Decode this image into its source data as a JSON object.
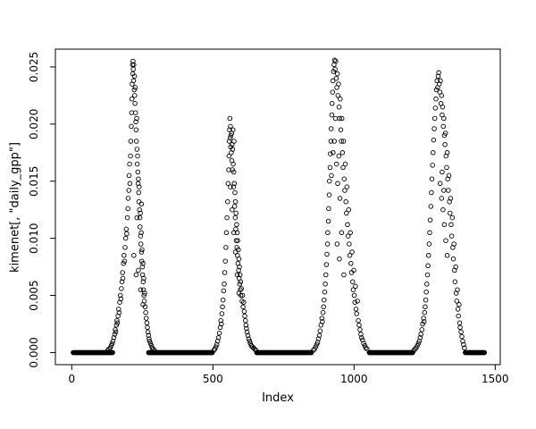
{
  "figure": {
    "background": "#ffffff",
    "foreground": "#000000"
  },
  "chart_data": {
    "type": "scatter",
    "title": "",
    "xlabel": "Index",
    "ylabel": "kimenet[, \"daily_gpp\"]",
    "x_ticks": [
      0,
      500,
      1000,
      1500
    ],
    "x_tick_labels": [
      "0",
      "500",
      "1000",
      "1500"
    ],
    "y_ticks": [
      0,
      0.005,
      0.01,
      0.015,
      0.02,
      0.025
    ],
    "y_tick_labels": [
      "0.000",
      "0.005",
      "0.010",
      "0.015",
      "0.020",
      "0.025"
    ],
    "xlim": [
      -58,
      1518
    ],
    "ylim": [
      -0.00106,
      0.02656
    ],
    "grid": false,
    "legend": null,
    "marker": {
      "shape": "open-circle",
      "radius": 2.3,
      "color": "#000000"
    },
    "baseline_runs": [
      {
        "x_start": 5,
        "x_end": 146,
        "step": 2,
        "y": 0
      },
      {
        "x_start": 272,
        "x_end": 498,
        "step": 2,
        "y": 0
      },
      {
        "x_start": 655,
        "x_end": 850,
        "step": 2,
        "y": 0
      },
      {
        "x_start": 1054,
        "x_end": 1208,
        "step": 2,
        "y": 0
      },
      {
        "x_start": 1394,
        "x_end": 1462,
        "step": 2,
        "y": 0
      }
    ],
    "points": [
      [
        128,
        0.0002
      ],
      [
        132,
        0.0003
      ],
      [
        136,
        0.0004
      ],
      [
        140,
        0.0006
      ],
      [
        143,
        0.0008
      ],
      [
        146,
        0.001
      ],
      [
        149,
        0.0013
      ],
      [
        152,
        0.0016
      ],
      [
        154,
        0.002
      ],
      [
        156,
        0.0018
      ],
      [
        158,
        0.0024
      ],
      [
        160,
        0.0028
      ],
      [
        162,
        0.0026
      ],
      [
        164,
        0.0032
      ],
      [
        166,
        0.0038
      ],
      [
        168,
        0.0035
      ],
      [
        170,
        0.0044
      ],
      [
        172,
        0.005
      ],
      [
        174,
        0.0047
      ],
      [
        176,
        0.0056
      ],
      [
        178,
        0.0062
      ],
      [
        180,
        0.007
      ],
      [
        181,
        0.0065
      ],
      [
        183,
        0.0078
      ],
      [
        185,
        0.0085
      ],
      [
        187,
        0.008
      ],
      [
        189,
        0.0092
      ],
      [
        191,
        0.01
      ],
      [
        193,
        0.0108
      ],
      [
        195,
        0.0104
      ],
      [
        197,
        0.0118
      ],
      [
        199,
        0.0126
      ],
      [
        200,
        0.0135
      ],
      [
        202,
        0.0142
      ],
      [
        203,
        0.0155
      ],
      [
        205,
        0.0165
      ],
      [
        206,
        0.0148
      ],
      [
        208,
        0.0172
      ],
      [
        209,
        0.0185
      ],
      [
        211,
        0.0198
      ],
      [
        212,
        0.021
      ],
      [
        213,
        0.0222
      ],
      [
        214,
        0.0235
      ],
      [
        215,
        0.0252
      ],
      [
        216,
        0.0244
      ],
      [
        217,
        0.0255
      ],
      [
        218,
        0.0248
      ],
      [
        219,
        0.0238
      ],
      [
        220,
        0.0252
      ],
      [
        221,
        0.023
      ],
      [
        222,
        0.0242
      ],
      [
        223,
        0.0225
      ],
      [
        224,
        0.0218
      ],
      [
        225,
        0.0232
      ],
      [
        226,
        0.021
      ],
      [
        227,
        0.0202
      ],
      [
        228,
        0.0195
      ],
      [
        229,
        0.0185
      ],
      [
        230,
        0.0205
      ],
      [
        231,
        0.0178
      ],
      [
        232,
        0.0165
      ],
      [
        233,
        0.0172
      ],
      [
        234,
        0.0158
      ],
      [
        235,
        0.0148
      ],
      [
        236,
        0.0152
      ],
      [
        237,
        0.014
      ],
      [
        238,
        0.0132
      ],
      [
        239,
        0.0145
      ],
      [
        240,
        0.0125
      ],
      [
        241,
        0.0118
      ],
      [
        242,
        0.011
      ],
      [
        243,
        0.0122
      ],
      [
        244,
        0.0102
      ],
      [
        245,
        0.0095
      ],
      [
        246,
        0.0105
      ],
      [
        247,
        0.0088
      ],
      [
        248,
        0.008
      ],
      [
        249,
        0.009
      ],
      [
        250,
        0.0075
      ],
      [
        251,
        0.0068
      ],
      [
        252,
        0.0078
      ],
      [
        253,
        0.0062
      ],
      [
        254,
        0.0055
      ],
      [
        255,
        0.0065
      ],
      [
        256,
        0.005
      ],
      [
        257,
        0.0045
      ],
      [
        258,
        0.0052
      ],
      [
        260,
        0.004
      ],
      [
        262,
        0.0035
      ],
      [
        264,
        0.003
      ],
      [
        266,
        0.0026
      ],
      [
        268,
        0.0022
      ],
      [
        270,
        0.0018
      ],
      [
        272,
        0.0015
      ],
      [
        274,
        0.0012
      ],
      [
        276,
        0.001
      ],
      [
        279,
        0.0008
      ],
      [
        282,
        0.0006
      ],
      [
        285,
        0.0004
      ],
      [
        289,
        0.0003
      ],
      [
        293,
        0.0002
      ],
      [
        220,
        0.0085
      ],
      [
        228,
        0.0068
      ],
      [
        236,
        0.0072
      ],
      [
        244,
        0.0055
      ],
      [
        252,
        0.0042
      ],
      [
        247,
        0.013
      ],
      [
        231,
        0.0118
      ],
      [
        503,
        0.0002
      ],
      [
        507,
        0.0003
      ],
      [
        511,
        0.0005
      ],
      [
        514,
        0.0007
      ],
      [
        517,
        0.001
      ],
      [
        520,
        0.0013
      ],
      [
        523,
        0.0017
      ],
      [
        526,
        0.0022
      ],
      [
        528,
        0.0028
      ],
      [
        530,
        0.0025
      ],
      [
        532,
        0.0034
      ],
      [
        534,
        0.004
      ],
      [
        536,
        0.0046
      ],
      [
        538,
        0.0054
      ],
      [
        540,
        0.006
      ],
      [
        542,
        0.007
      ],
      [
        544,
        0.008
      ],
      [
        546,
        0.0092
      ],
      [
        548,
        0.0105
      ],
      [
        550,
        0.0118
      ],
      [
        552,
        0.0132
      ],
      [
        554,
        0.0148
      ],
      [
        556,
        0.016
      ],
      [
        557,
        0.0172
      ],
      [
        558,
        0.0185
      ],
      [
        559,
        0.0195
      ],
      [
        560,
        0.0205
      ],
      [
        561,
        0.0188
      ],
      [
        562,
        0.0198
      ],
      [
        563,
        0.018
      ],
      [
        564,
        0.019
      ],
      [
        565,
        0.0175
      ],
      [
        566,
        0.0192
      ],
      [
        567,
        0.0168
      ],
      [
        568,
        0.0182
      ],
      [
        569,
        0.016
      ],
      [
        570,
        0.0178
      ],
      [
        571,
        0.0195
      ],
      [
        572,
        0.0165
      ],
      [
        573,
        0.0145
      ],
      [
        574,
        0.0158
      ],
      [
        575,
        0.0185
      ],
      [
        576,
        0.0148
      ],
      [
        577,
        0.0128
      ],
      [
        578,
        0.014
      ],
      [
        579,
        0.0118
      ],
      [
        580,
        0.0132
      ],
      [
        581,
        0.0108
      ],
      [
        582,
        0.0122
      ],
      [
        583,
        0.0098
      ],
      [
        584,
        0.0112
      ],
      [
        585,
        0.0092
      ],
      [
        586,
        0.0105
      ],
      [
        587,
        0.0085
      ],
      [
        588,
        0.0098
      ],
      [
        589,
        0.0078
      ],
      [
        590,
        0.009
      ],
      [
        591,
        0.0072
      ],
      [
        592,
        0.0082
      ],
      [
        593,
        0.0065
      ],
      [
        594,
        0.0075
      ],
      [
        595,
        0.006
      ],
      [
        596,
        0.0068
      ],
      [
        597,
        0.0055
      ],
      [
        598,
        0.0062
      ],
      [
        599,
        0.005
      ],
      [
        601,
        0.0056
      ],
      [
        603,
        0.0045
      ],
      [
        605,
        0.005
      ],
      [
        607,
        0.004
      ],
      [
        609,
        0.0044
      ],
      [
        611,
        0.0036
      ],
      [
        613,
        0.0032
      ],
      [
        615,
        0.0028
      ],
      [
        617,
        0.0024
      ],
      [
        619,
        0.0021
      ],
      [
        621,
        0.0018
      ],
      [
        624,
        0.0015
      ],
      [
        627,
        0.0012
      ],
      [
        630,
        0.001
      ],
      [
        633,
        0.0008
      ],
      [
        636,
        0.0006
      ],
      [
        640,
        0.0005
      ],
      [
        644,
        0.0004
      ],
      [
        648,
        0.0003
      ],
      [
        652,
        0.0002
      ],
      [
        562,
        0.0145
      ],
      [
        568,
        0.0125
      ],
      [
        574,
        0.0105
      ],
      [
        580,
        0.0088
      ],
      [
        586,
        0.0068
      ],
      [
        592,
        0.0052
      ],
      [
        856,
        0.0002
      ],
      [
        860,
        0.0003
      ],
      [
        864,
        0.0005
      ],
      [
        868,
        0.0007
      ],
      [
        871,
        0.0009
      ],
      [
        874,
        0.0012
      ],
      [
        877,
        0.0015
      ],
      [
        880,
        0.0019
      ],
      [
        883,
        0.0024
      ],
      [
        886,
        0.003
      ],
      [
        888,
        0.0027
      ],
      [
        890,
        0.0035
      ],
      [
        892,
        0.004
      ],
      [
        894,
        0.0046
      ],
      [
        896,
        0.0053
      ],
      [
        898,
        0.006
      ],
      [
        900,
        0.0068
      ],
      [
        902,
        0.0077
      ],
      [
        904,
        0.0086
      ],
      [
        906,
        0.0095
      ],
      [
        907,
        0.0105
      ],
      [
        909,
        0.0115
      ],
      [
        910,
        0.0126
      ],
      [
        912,
        0.0138
      ],
      [
        913,
        0.015
      ],
      [
        915,
        0.0162
      ],
      [
        916,
        0.0174
      ],
      [
        918,
        0.0185
      ],
      [
        919,
        0.0196
      ],
      [
        921,
        0.0208
      ],
      [
        922,
        0.0218
      ],
      [
        924,
        0.0228
      ],
      [
        925,
        0.0238
      ],
      [
        927,
        0.0246
      ],
      [
        929,
        0.0252
      ],
      [
        931,
        0.0256
      ],
      [
        933,
        0.0248
      ],
      [
        935,
        0.0255
      ],
      [
        937,
        0.024
      ],
      [
        939,
        0.0232
      ],
      [
        941,
        0.0244
      ],
      [
        943,
        0.0225
      ],
      [
        945,
        0.0235
      ],
      [
        947,
        0.0215
      ],
      [
        949,
        0.0205
      ],
      [
        951,
        0.0222
      ],
      [
        953,
        0.0195
      ],
      [
        955,
        0.0185
      ],
      [
        957,
        0.0205
      ],
      [
        959,
        0.0175
      ],
      [
        961,
        0.0162
      ],
      [
        963,
        0.0185
      ],
      [
        965,
        0.0152
      ],
      [
        967,
        0.0142
      ],
      [
        969,
        0.0165
      ],
      [
        971,
        0.0132
      ],
      [
        973,
        0.0122
      ],
      [
        975,
        0.0145
      ],
      [
        977,
        0.0112
      ],
      [
        979,
        0.0102
      ],
      [
        981,
        0.0125
      ],
      [
        983,
        0.0095
      ],
      [
        985,
        0.0085
      ],
      [
        987,
        0.0105
      ],
      [
        989,
        0.0078
      ],
      [
        991,
        0.007
      ],
      [
        993,
        0.0088
      ],
      [
        995,
        0.0062
      ],
      [
        997,
        0.0055
      ],
      [
        999,
        0.0072
      ],
      [
        1001,
        0.005
      ],
      [
        1003,
        0.0044
      ],
      [
        1005,
        0.0058
      ],
      [
        1007,
        0.0038
      ],
      [
        1009,
        0.0034
      ],
      [
        1012,
        0.0045
      ],
      [
        1015,
        0.0028
      ],
      [
        1018,
        0.0024
      ],
      [
        1021,
        0.002
      ],
      [
        1024,
        0.0016
      ],
      [
        1027,
        0.0013
      ],
      [
        1030,
        0.0011
      ],
      [
        1034,
        0.0008
      ],
      [
        1038,
        0.0006
      ],
      [
        1042,
        0.0004
      ],
      [
        1046,
        0.0003
      ],
      [
        930,
        0.0185
      ],
      [
        934,
        0.0205
      ],
      [
        938,
        0.0165
      ],
      [
        942,
        0.0148
      ],
      [
        946,
        0.0172
      ],
      [
        950,
        0.0135
      ],
      [
        920,
        0.0155
      ],
      [
        926,
        0.0175
      ],
      [
        940,
        0.0095
      ],
      [
        948,
        0.0082
      ],
      [
        956,
        0.0105
      ],
      [
        964,
        0.0068
      ],
      [
        1212,
        0.0002
      ],
      [
        1216,
        0.0003
      ],
      [
        1220,
        0.0004
      ],
      [
        1224,
        0.0006
      ],
      [
        1228,
        0.0008
      ],
      [
        1231,
        0.001
      ],
      [
        1234,
        0.0013
      ],
      [
        1237,
        0.0016
      ],
      [
        1240,
        0.002
      ],
      [
        1243,
        0.0025
      ],
      [
        1246,
        0.003
      ],
      [
        1248,
        0.0027
      ],
      [
        1250,
        0.0035
      ],
      [
        1252,
        0.004
      ],
      [
        1254,
        0.0046
      ],
      [
        1256,
        0.0053
      ],
      [
        1258,
        0.006
      ],
      [
        1260,
        0.0068
      ],
      [
        1262,
        0.0076
      ],
      [
        1264,
        0.0085
      ],
      [
        1266,
        0.0095
      ],
      [
        1268,
        0.0105
      ],
      [
        1270,
        0.0116
      ],
      [
        1272,
        0.0128
      ],
      [
        1274,
        0.014
      ],
      [
        1276,
        0.0152
      ],
      [
        1278,
        0.0164
      ],
      [
        1280,
        0.0175
      ],
      [
        1282,
        0.0186
      ],
      [
        1284,
        0.0196
      ],
      [
        1286,
        0.0205
      ],
      [
        1288,
        0.0214
      ],
      [
        1290,
        0.0222
      ],
      [
        1292,
        0.023
      ],
      [
        1294,
        0.0238
      ],
      [
        1296,
        0.0232
      ],
      [
        1298,
        0.0242
      ],
      [
        1300,
        0.0245
      ],
      [
        1302,
        0.0235
      ],
      [
        1304,
        0.0228
      ],
      [
        1306,
        0.0238
      ],
      [
        1308,
        0.0218
      ],
      [
        1310,
        0.0225
      ],
      [
        1312,
        0.0208
      ],
      [
        1314,
        0.0215
      ],
      [
        1316,
        0.0198
      ],
      [
        1318,
        0.0205
      ],
      [
        1320,
        0.019
      ],
      [
        1322,
        0.0182
      ],
      [
        1324,
        0.0192
      ],
      [
        1326,
        0.0172
      ],
      [
        1328,
        0.0162
      ],
      [
        1330,
        0.0175
      ],
      [
        1332,
        0.0152
      ],
      [
        1334,
        0.0142
      ],
      [
        1336,
        0.0155
      ],
      [
        1338,
        0.0132
      ],
      [
        1340,
        0.0122
      ],
      [
        1342,
        0.0135
      ],
      [
        1344,
        0.0112
      ],
      [
        1346,
        0.0102
      ],
      [
        1348,
        0.0118
      ],
      [
        1350,
        0.0092
      ],
      [
        1352,
        0.0082
      ],
      [
        1354,
        0.0095
      ],
      [
        1356,
        0.0072
      ],
      [
        1358,
        0.0062
      ],
      [
        1360,
        0.0075
      ],
      [
        1362,
        0.0052
      ],
      [
        1364,
        0.0045
      ],
      [
        1366,
        0.0055
      ],
      [
        1368,
        0.0038
      ],
      [
        1370,
        0.0032
      ],
      [
        1372,
        0.0042
      ],
      [
        1374,
        0.0026
      ],
      [
        1376,
        0.0022
      ],
      [
        1379,
        0.0018
      ],
      [
        1382,
        0.0014
      ],
      [
        1385,
        0.001
      ],
      [
        1388,
        0.0007
      ],
      [
        1391,
        0.0004
      ],
      [
        1305,
        0.0148
      ],
      [
        1310,
        0.0135
      ],
      [
        1315,
        0.0125
      ],
      [
        1320,
        0.0112
      ],
      [
        1325,
        0.0098
      ],
      [
        1330,
        0.0085
      ],
      [
        1312,
        0.0158
      ],
      [
        1318,
        0.0142
      ]
    ]
  }
}
